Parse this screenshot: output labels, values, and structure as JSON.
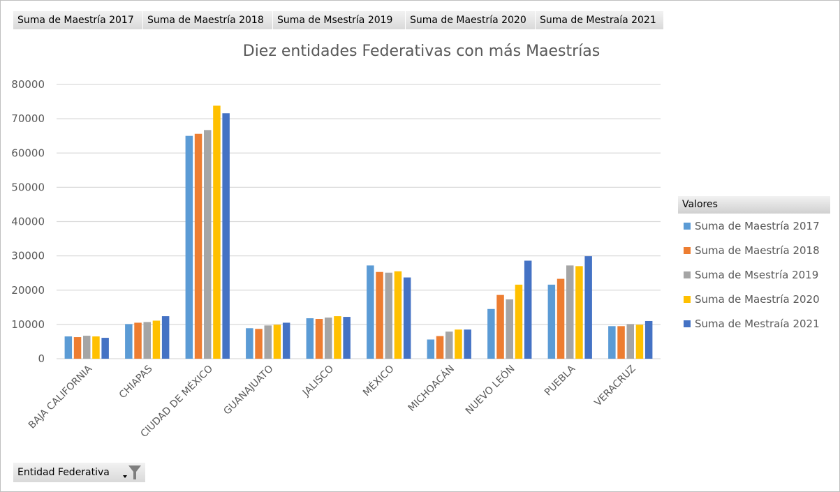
{
  "field_buttons": [
    "Suma de Maestría 2017",
    "Suma de Maestría 2018",
    "Suma de Msestría  2019",
    "Suma de Maestría 2020",
    "Suma de Mestraía 2021"
  ],
  "axis_filter": {
    "label": "Entidad Federativa",
    "icon": "filter-dropdown-icon"
  },
  "legend_title": "Valores",
  "chart_data": {
    "type": "bar",
    "title": "Diez entidades Federativas con más Maestrías",
    "xlabel": "",
    "ylabel": "",
    "ylim": [
      0,
      80000
    ],
    "yticks": [
      0,
      10000,
      20000,
      30000,
      40000,
      50000,
      60000,
      70000,
      80000
    ],
    "grid": true,
    "legend_placement": "right",
    "categories": [
      "BAJA CALIFORNIA",
      "CHIAPAS",
      "CIUDAD DE MÉXICO",
      "GUANAJUATO",
      "JALISCO",
      "MÉXICO",
      "MICHOACÁN",
      "NUEVO LEÓN",
      "PUEBLA",
      "VERACRUZ"
    ],
    "series": [
      {
        "name": "Suma de Maestría 2017",
        "color": "#5b9bd5",
        "values": [
          6500,
          10100,
          65000,
          8900,
          11800,
          27200,
          5600,
          14500,
          21600,
          9500
        ]
      },
      {
        "name": "Suma de Maestría 2018",
        "color": "#ed7d31",
        "values": [
          6300,
          10500,
          65600,
          8700,
          11600,
          25300,
          6600,
          18600,
          23300,
          9500
        ]
      },
      {
        "name": "Suma de Msestría  2019",
        "color": "#a5a5a5",
        "values": [
          6700,
          10700,
          66700,
          9700,
          12000,
          25100,
          7900,
          17300,
          27200,
          10100
        ]
      },
      {
        "name": "Suma de Maestría 2020",
        "color": "#ffc000",
        "values": [
          6500,
          11100,
          73800,
          9900,
          12400,
          25500,
          8500,
          21600,
          27000,
          9900
        ]
      },
      {
        "name": "Suma de Mestraía 2021",
        "color": "#4472c4",
        "values": [
          6100,
          12400,
          71600,
          10500,
          12200,
          23700,
          8500,
          28600,
          29900,
          11000
        ]
      }
    ]
  }
}
